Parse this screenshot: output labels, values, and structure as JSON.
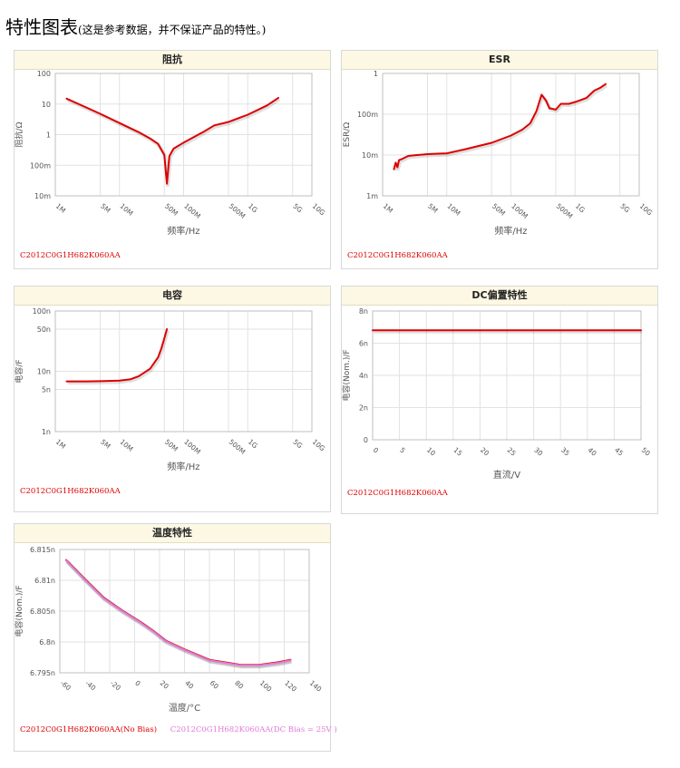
{
  "page": {
    "title": "特性图表",
    "subtitle": "(这是参考数据，并不保证产品的特性。)"
  },
  "chart_data": [
    {
      "id": "impedance",
      "title": "阻抗",
      "type": "line",
      "xscale": "log",
      "yscale": "log",
      "xlim": [
        1,
        10000
      ],
      "ylim": [
        0.01,
        100
      ],
      "xticks": [
        1,
        5,
        10,
        50,
        100,
        500,
        1000,
        5000,
        10000
      ],
      "xticklabels": [
        "1M",
        "5M",
        "10M",
        "50M",
        "100M",
        "500M",
        "1G",
        "5G",
        "10G"
      ],
      "yticks": [
        0.01,
        0.1,
        1,
        10,
        100
      ],
      "yticklabels": [
        "10m",
        "100m",
        "1",
        "10",
        "100"
      ],
      "xlabel": "频率/Hz",
      "ylabel": "阻抗/Ω",
      "grid": true,
      "series": [
        {
          "name": "C2012C0G1H682K060AA",
          "color": "#dd0000",
          "x": [
            1.5,
            3,
            5,
            10,
            20,
            30,
            40,
            50,
            55,
            60,
            70,
            100,
            200,
            300,
            500,
            1000,
            2000,
            3000
          ],
          "y": [
            15,
            7.8,
            4.8,
            2.4,
            1.2,
            0.75,
            0.5,
            0.22,
            0.025,
            0.2,
            0.35,
            0.55,
            1.2,
            2.0,
            2.6,
            4.5,
            9,
            16
          ]
        }
      ],
      "legend": [
        "C2012C0G1H682K060AA"
      ]
    },
    {
      "id": "esr",
      "title": "ESR",
      "type": "line",
      "xscale": "log",
      "yscale": "log",
      "xlim": [
        1,
        10000
      ],
      "ylim": [
        0.001,
        1
      ],
      "xticks": [
        1,
        5,
        10,
        50,
        100,
        500,
        1000,
        5000,
        10000
      ],
      "xticklabels": [
        "1M",
        "5M",
        "10M",
        "50M",
        "100M",
        "500M",
        "1G",
        "5G",
        "10G"
      ],
      "yticks": [
        0.001,
        0.01,
        0.1,
        1
      ],
      "yticklabels": [
        "1m",
        "10m",
        "100m",
        "1"
      ],
      "xlabel": "频率/Hz",
      "ylabel": "ESR/Ω",
      "grid": true,
      "series": [
        {
          "name": "C2012C0G1H682K060AA",
          "color": "#dd0000",
          "x": [
            1.5,
            1.6,
            1.7,
            1.8,
            2,
            2.5,
            3,
            4,
            5,
            7,
            10,
            20,
            50,
            100,
            150,
            200,
            250,
            300,
            350,
            400,
            500,
            600,
            800,
            1000,
            1500,
            2000,
            2500,
            3000
          ],
          "y": [
            0.0045,
            0.0065,
            0.005,
            0.0075,
            0.008,
            0.0095,
            0.0098,
            0.0102,
            0.0105,
            0.0108,
            0.011,
            0.014,
            0.02,
            0.03,
            0.042,
            0.06,
            0.12,
            0.3,
            0.22,
            0.14,
            0.13,
            0.18,
            0.18,
            0.2,
            0.25,
            0.38,
            0.45,
            0.55
          ]
        }
      ],
      "legend": [
        "C2012C0G1H682K060AA"
      ]
    },
    {
      "id": "capacitance",
      "title": "电容",
      "type": "line",
      "xscale": "log",
      "yscale": "log",
      "xlim": [
        1,
        10000
      ],
      "ylim": [
        1,
        100
      ],
      "xticks": [
        1,
        5,
        10,
        50,
        100,
        500,
        1000,
        5000,
        10000
      ],
      "xticklabels": [
        "1M",
        "5M",
        "10M",
        "50M",
        "100M",
        "500M",
        "1G",
        "5G",
        "10G"
      ],
      "yticks": [
        1,
        5,
        10,
        50,
        100
      ],
      "yticklabels": [
        "1n",
        "5n",
        "10n",
        "50n",
        "100n"
      ],
      "xlabel": "频率/Hz",
      "ylabel": "电容/F",
      "grid": true,
      "series": [
        {
          "name": "C2012C0G1H682K060AA",
          "color": "#dd0000",
          "x": [
            1.5,
            3,
            5,
            10,
            15,
            20,
            30,
            40,
            45,
            50,
            55
          ],
          "y": [
            6.8,
            6.8,
            6.85,
            7.0,
            7.4,
            8.3,
            11,
            17,
            24,
            35,
            50
          ]
        }
      ],
      "legend": [
        "C2012C0G1H682K060AA"
      ]
    },
    {
      "id": "dc-bias",
      "title": "DC偏置特性",
      "type": "line",
      "xscale": "linear",
      "yscale": "linear",
      "xlim": [
        0,
        50
      ],
      "ylim": [
        0,
        8
      ],
      "xticks": [
        0,
        5,
        10,
        15,
        20,
        25,
        30,
        35,
        40,
        45,
        50
      ],
      "xticklabels": [
        "0",
        "5",
        "10",
        "15",
        "20",
        "25",
        "30",
        "35",
        "40",
        "45",
        "50"
      ],
      "yticks": [
        0,
        2,
        4,
        6,
        8
      ],
      "yticklabels": [
        "0",
        "2n",
        "4n",
        "6n",
        "8n"
      ],
      "xlabel": "直流/V",
      "ylabel": "电容(Nom.)/F",
      "grid": true,
      "series": [
        {
          "name": "C2012C0G1H682K060AA",
          "color": "#dd0000",
          "x": [
            0,
            50
          ],
          "y": [
            6.8,
            6.8
          ]
        }
      ],
      "legend": [
        "C2012C0G1H682K060AA"
      ]
    },
    {
      "id": "temperature",
      "title": "温度特性",
      "type": "line",
      "xscale": "linear",
      "yscale": "linear",
      "xlim": [
        -60,
        140
      ],
      "ylim": [
        6.795,
        6.815
      ],
      "xticks": [
        -60,
        -40,
        -20,
        0,
        20,
        40,
        60,
        80,
        100,
        120,
        140
      ],
      "xticklabels": [
        "-60",
        "-40",
        "-20",
        "0",
        "20",
        "40",
        "60",
        "80",
        "100",
        "120",
        "140"
      ],
      "yticks": [
        6.795,
        6.8,
        6.805,
        6.81,
        6.815
      ],
      "yticklabels": [
        "6.795n",
        "6.8n",
        "6.805n",
        "6.81n",
        "6.815n"
      ],
      "xlabel": "温度/°C",
      "ylabel": "电容(Nom.)/F",
      "grid": true,
      "series": [
        {
          "name": "C2012C0G1H682K060AA(No Bias)",
          "color": "#dd0000",
          "x": [
            -55,
            -40,
            -25,
            -10,
            5,
            15,
            25,
            40,
            60,
            85,
            100,
            115,
            125
          ],
          "y": [
            6.8133,
            6.8102,
            6.8072,
            6.8051,
            6.8032,
            6.8018,
            6.8002,
            6.7988,
            6.7971,
            6.7963,
            6.7963,
            6.7967,
            6.7971
          ]
        },
        {
          "name": "C2012C0G1H682K060AA(DC Bias = 25V )",
          "color": "#e07ad8",
          "x": [
            -55,
            -40,
            -25,
            -10,
            5,
            15,
            25,
            40,
            60,
            85,
            100,
            115,
            125
          ],
          "y": [
            6.8132,
            6.8101,
            6.8071,
            6.805,
            6.8031,
            6.8017,
            6.8001,
            6.7987,
            6.797,
            6.7962,
            6.7962,
            6.7966,
            6.797
          ]
        }
      ],
      "legend": [
        "C2012C0G1H682K060AA(No Bias)",
        "C2012C0G1H682K060AA(DC Bias = 25V )"
      ]
    }
  ]
}
